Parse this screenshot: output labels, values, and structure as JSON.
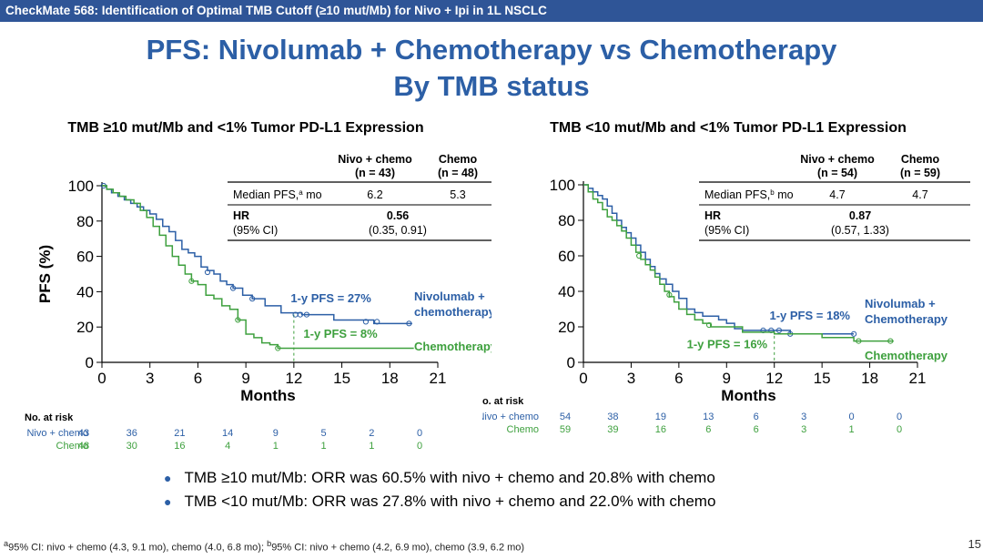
{
  "header": {
    "bar_text": "CheckMate 568: Identification of Optimal TMB Cutoff (≥10 mut/Mb) for Nivo + Ipi in 1L NSCLC"
  },
  "title": {
    "line1": "PFS: Nivolumab + Chemotherapy vs Chemotherapy",
    "line2": "By TMB status"
  },
  "colors": {
    "nivo": "#2c5fa6",
    "chemo": "#3ea03e",
    "accent": "#2c5fa6"
  },
  "chart_data": [
    {
      "type": "line",
      "panel_title": "TMB ≥10 mut/Mb and <1% Tumor PD-L1 Expression",
      "xlabel": "Months",
      "ylabel": "PFS (%)",
      "xlim": [
        0,
        21
      ],
      "ylim": [
        0,
        100
      ],
      "xticks": [
        0,
        3,
        6,
        9,
        12,
        15,
        18,
        21
      ],
      "yticks": [
        0,
        20,
        40,
        60,
        80,
        100
      ],
      "series": [
        {
          "name": "Nivolumab + chemotherapy",
          "label_lines": [
            "Nivolumab +",
            "chemotherapy"
          ],
          "color": "#2c5fa6",
          "x": [
            0,
            0.3,
            0.6,
            1.0,
            1.4,
            1.8,
            2.2,
            2.6,
            3.0,
            3.4,
            3.8,
            4.2,
            4.6,
            5.0,
            5.4,
            5.8,
            6.2,
            6.6,
            7.0,
            7.4,
            7.8,
            8.2,
            8.8,
            9.4,
            10.2,
            11.2,
            12.5,
            13.5,
            14.5,
            16.0,
            17.0,
            18.3,
            19.4
          ],
          "y": [
            100,
            98,
            96,
            94,
            92,
            90,
            88,
            86,
            84,
            81,
            77,
            74,
            69,
            64,
            62,
            60,
            54,
            52,
            50,
            46,
            44,
            42,
            38,
            36,
            32,
            28,
            27,
            27,
            24,
            24,
            22,
            22,
            22
          ],
          "censor_x": [
            0.1,
            6.6,
            8.2,
            9.4,
            12.1,
            12.4,
            12.8,
            16.5,
            17.2,
            19.2
          ],
          "censor_y": [
            100,
            51,
            42,
            36,
            27,
            27,
            27,
            23,
            23,
            22
          ]
        },
        {
          "name": "Chemotherapy",
          "label_lines": [
            "Chemotherapy"
          ],
          "color": "#3ea03e",
          "x": [
            0,
            0.3,
            0.7,
            1.1,
            1.5,
            2.0,
            2.4,
            2.8,
            3.2,
            3.6,
            4.0,
            4.4,
            4.8,
            5.2,
            5.6,
            6.0,
            6.5,
            7.0,
            7.5,
            8.0,
            8.5,
            9.0,
            9.5,
            10.0,
            10.5,
            11.0,
            12.0,
            13.0,
            16.0,
            19.5
          ],
          "y": [
            100,
            98,
            96,
            94,
            92,
            90,
            86,
            82,
            77,
            72,
            66,
            60,
            55,
            50,
            46,
            44,
            38,
            36,
            32,
            30,
            24,
            16,
            14,
            11,
            10,
            8,
            8,
            8,
            8,
            8
          ],
          "censor_x": [
            5.6,
            8.5,
            11.0
          ],
          "censor_y": [
            46,
            24,
            8
          ]
        }
      ],
      "landmark": {
        "x": 12,
        "y_top": 27
      },
      "annotations": [
        {
          "text": "1-y PFS = 27%",
          "color": "#2c5fa6",
          "x": 11.8,
          "y": 34
        },
        {
          "text": "1-y PFS = 8%",
          "color": "#3ea03e",
          "x": 12.6,
          "y": 14
        }
      ],
      "stats_table": {
        "headers": [
          [
            "Nivo + chemo",
            "(n = 43)"
          ],
          [
            "Chemo",
            "(n = 48)"
          ]
        ],
        "median_label": "Median PFS,",
        "median_sup": "a",
        "median_unit": " mo",
        "median_values": [
          "6.2",
          "5.3"
        ],
        "hr_label": "HR",
        "ci_label": "(95% CI)",
        "hr_value": "0.56",
        "ci_value": "(0.35, 0.91)"
      },
      "risk": {
        "title": "No. at risk",
        "rows": [
          {
            "label": "Nivo + chemo",
            "values": [
              43,
              36,
              21,
              14,
              9,
              5,
              2,
              0
            ]
          },
          {
            "label": "Chemo",
            "values": [
              48,
              30,
              16,
              4,
              1,
              1,
              1,
              0
            ]
          }
        ]
      }
    },
    {
      "type": "line",
      "panel_title": "TMB <10 mut/Mb and <1% Tumor PD-L1 Expression",
      "xlabel": "Months",
      "ylabel": "",
      "xlim": [
        0,
        21
      ],
      "ylim": [
        0,
        100
      ],
      "xticks": [
        0,
        3,
        6,
        9,
        12,
        15,
        18,
        21
      ],
      "yticks": [
        0,
        20,
        40,
        60,
        80,
        100
      ],
      "series": [
        {
          "name": "Nivolumab + Chemotherapy",
          "label_lines": [
            "Nivolumab +",
            "Chemotherapy"
          ],
          "color": "#2c5fa6",
          "x": [
            0,
            0.3,
            0.6,
            0.9,
            1.2,
            1.5,
            1.8,
            2.1,
            2.4,
            2.7,
            3.0,
            3.3,
            3.6,
            3.9,
            4.2,
            4.5,
            4.8,
            5.2,
            5.6,
            6.0,
            6.5,
            7.0,
            7.5,
            8.0,
            8.5,
            9.0,
            9.5,
            10.0,
            11.0,
            12.0,
            13.0,
            15.0,
            17.0
          ],
          "y": [
            100,
            98,
            96,
            94,
            92,
            88,
            84,
            80,
            76,
            73,
            70,
            66,
            62,
            58,
            54,
            50,
            47,
            44,
            40,
            36,
            30,
            28,
            26,
            26,
            24,
            22,
            19,
            18,
            18,
            18,
            16,
            16,
            16
          ],
          "censor_x": [
            11.3,
            11.8,
            12.3,
            13.0,
            17.0
          ],
          "censor_y": [
            18,
            18,
            18,
            16,
            16
          ]
        },
        {
          "name": "Chemotherapy",
          "label_lines": [
            "Chemotherapy"
          ],
          "color": "#3ea03e",
          "x": [
            0,
            0.3,
            0.6,
            0.9,
            1.2,
            1.5,
            1.8,
            2.1,
            2.4,
            2.7,
            3.0,
            3.3,
            3.6,
            3.9,
            4.2,
            4.5,
            4.8,
            5.1,
            5.4,
            5.7,
            6.0,
            6.5,
            7.0,
            7.5,
            8.0,
            9.0,
            10.0,
            11.0,
            12.0,
            15.0,
            17.0,
            19.5
          ],
          "y": [
            100,
            96,
            92,
            90,
            86,
            82,
            80,
            77,
            74,
            70,
            66,
            62,
            58,
            55,
            52,
            48,
            44,
            40,
            37,
            34,
            30,
            27,
            24,
            22,
            20,
            20,
            17,
            17,
            16,
            14,
            12,
            12
          ],
          "censor_x": [
            3.5,
            5.4,
            7.9,
            17.3,
            19.3
          ],
          "censor_y": [
            60,
            38,
            21,
            12,
            12
          ]
        }
      ],
      "landmark": {
        "x": 12,
        "y_top": 18
      },
      "annotations": [
        {
          "text": "1-y PFS = 18%",
          "color": "#2c5fa6",
          "x": 11.7,
          "y": 24
        },
        {
          "text": "1-y PFS = 16%",
          "color": "#3ea03e",
          "x": 6.5,
          "y": 8
        }
      ],
      "stats_table": {
        "headers": [
          [
            "Nivo + chemo",
            "(n = 54)"
          ],
          [
            "Chemo",
            "(n = 59)"
          ]
        ],
        "median_label": "Median PFS,",
        "median_sup": "b",
        "median_unit": " mo",
        "median_values": [
          "4.7",
          "4.7"
        ],
        "hr_label": "HR",
        "ci_label": "(95% CI)",
        "hr_value": "0.87",
        "ci_value": "(0.57, 1.33)"
      },
      "risk": {
        "title": "No. at risk",
        "rows": [
          {
            "label": "Nivo + chemo",
            "values": [
              54,
              38,
              19,
              13,
              6,
              3,
              0,
              0
            ]
          },
          {
            "label": "Chemo",
            "values": [
              59,
              39,
              16,
              6,
              6,
              3,
              1,
              0
            ]
          }
        ]
      }
    }
  ],
  "bullets": [
    "TMB ≥10 mut/Mb: ORR was 60.5% with nivo + chemo and 20.8% with chemo",
    "TMB <10 mut/Mb: ORR was 27.8% with nivo + chemo and 22.0% with chemo"
  ],
  "footnote": {
    "sup_a": "a",
    "text_a": "95% CI: nivo + chemo (4.3, 9.1 mo), chemo (4.0, 6.8 mo); ",
    "sup_b": "b",
    "text_b": "95% CI: nivo + chemo (4.2, 6.9 mo), chemo (3.9, 6.2 mo)"
  },
  "page_number": "15"
}
